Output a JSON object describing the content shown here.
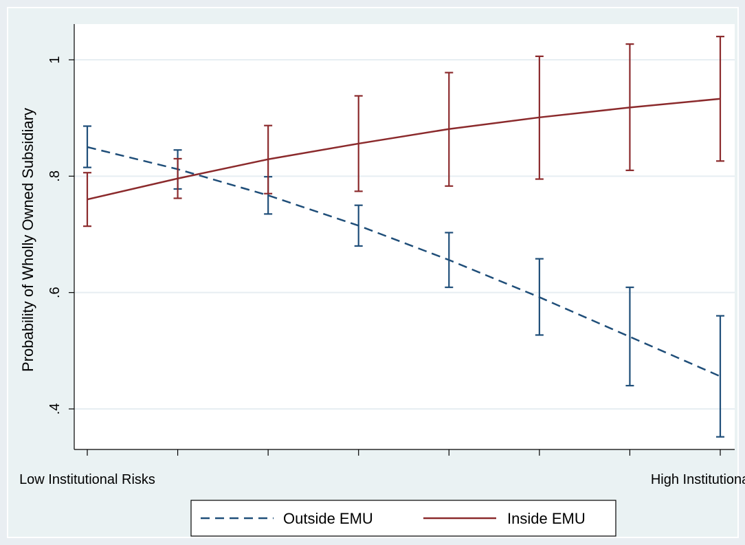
{
  "chart_data": {
    "type": "line",
    "title": "",
    "ylabel": "Probability of Wholly Owned Subsidiary",
    "xlabel": "",
    "x": [
      1,
      2,
      3,
      4,
      5,
      6,
      7,
      8
    ],
    "x_tick_labels": [
      {
        "x": 1,
        "label": "Low Institutional Risks"
      },
      {
        "x": 8,
        "label": "High Institutional Risks"
      }
    ],
    "y_ticks": [
      0.4,
      0.6,
      0.8,
      1.0
    ],
    "y_tick_labels": [
      ".4",
      ".6",
      ".8",
      "1"
    ],
    "ylim": [
      0.35,
      1.05
    ],
    "xlim": [
      1,
      8
    ],
    "grid": true,
    "legend_position": "bottom",
    "series": [
      {
        "name": "Outside EMU",
        "style": "dashed",
        "color": "#1f4e79",
        "values": [
          0.85,
          0.812,
          0.767,
          0.715,
          0.656,
          0.592,
          0.524,
          0.456
        ],
        "lower": [
          0.815,
          0.778,
          0.735,
          0.68,
          0.609,
          0.527,
          0.44,
          0.352
        ],
        "upper": [
          0.886,
          0.845,
          0.799,
          0.75,
          0.703,
          0.658,
          0.609,
          0.56
        ]
      },
      {
        "name": "Inside EMU",
        "style": "solid",
        "color": "#8b2a2c",
        "values": [
          0.76,
          0.796,
          0.829,
          0.856,
          0.881,
          0.901,
          0.918,
          0.933
        ],
        "lower": [
          0.714,
          0.762,
          0.77,
          0.774,
          0.783,
          0.795,
          0.81,
          0.826
        ],
        "upper": [
          0.806,
          0.83,
          0.887,
          0.938,
          0.978,
          1.006,
          1.027,
          1.04
        ]
      }
    ]
  }
}
